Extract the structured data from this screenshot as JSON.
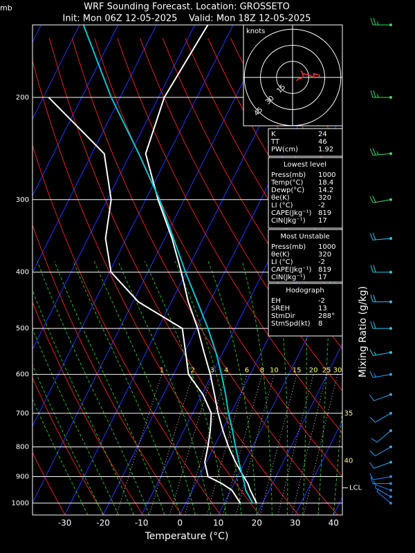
{
  "chart_data": {
    "type": "skewt",
    "title": "WRF Sounding Forecast. Location: GROSSETO",
    "subtitle": "Init: Mon 06Z 12-05-2025    Valid: Mon 18Z 12-05-2025",
    "y_unit": "mb",
    "xlabel": "Temperature (°C)",
    "xlim": [
      -38.4,
      42.3
    ],
    "xticks": [
      -30,
      -20,
      -10,
      0,
      10,
      20,
      30,
      40
    ],
    "ylim": [
      1048,
      150
    ],
    "yticks": [
      1000,
      900,
      800,
      700,
      600,
      500,
      400,
      300,
      200
    ],
    "log_y": true,
    "pressures": [
      1000,
      950,
      925,
      900,
      850,
      800,
      750,
      700,
      650,
      600,
      550,
      500,
      450,
      400,
      350,
      300,
      250,
      200,
      150
    ],
    "series": [
      {
        "color": "#ffffff",
        "values": [
          18.4,
          15.1,
          13.6,
          11.6,
          7.6,
          3.8,
          0.2,
          -3.3,
          -6.7,
          -10.4,
          -14.9,
          -19.7,
          -25.6,
          -31.3,
          -38.1,
          -46.8,
          -56.0,
          -58.5,
          -56.6
        ]
      },
      {
        "color": "#ffffff",
        "values": [
          14.2,
          10.3,
          6.8,
          2.3,
          -0.4,
          -1.6,
          -3.1,
          -5.1,
          -9.7,
          -16.1,
          -19.7,
          -23.7,
          -38.6,
          -49.6,
          -55.4,
          -59.0,
          -66.8,
          -88.6,
          null
        ]
      },
      {
        "color": "#00c8d0",
        "values": [
          17.4,
          13.9,
          12.7,
          11.3,
          8.5,
          5.6,
          2.7,
          -0.6,
          -3.8,
          -7.5,
          -11.8,
          -17.0,
          -23.2,
          -30.2,
          -37.7,
          -46.4,
          -57.8,
          -72.3,
          -89.0
        ]
      }
    ],
    "mixing_ratio": {
      "label": "Mixing Ratio (g/kg)",
      "top_pressure": 600,
      "values": [
        1,
        2,
        3,
        4,
        6,
        8,
        10,
        15,
        20,
        25,
        30
      ]
    },
    "moist_labels": [
      {
        "label": 35,
        "pressure": 700
      },
      {
        "label": 40,
        "pressure": 845
      }
    ],
    "lcl": {
      "label": "LCL",
      "pressure": 941
    },
    "winds": {
      "pressures": [
        150,
        200,
        250,
        300,
        350,
        400,
        450,
        500,
        550,
        600,
        650,
        700,
        750,
        800,
        850,
        900,
        925,
        950,
        975,
        1000
      ],
      "direction": [
        270,
        270,
        265,
        260,
        265,
        270,
        270,
        270,
        260,
        260,
        250,
        240,
        230,
        240,
        250,
        260,
        270,
        290,
        300,
        310
      ],
      "speed": [
        25,
        25,
        25,
        20,
        20,
        20,
        20,
        20,
        15,
        15,
        10,
        10,
        10,
        10,
        10,
        10,
        10,
        5,
        5,
        5
      ],
      "colors": [
        "#33dd66",
        "#33dd66",
        "#33dd66",
        "#33dd66",
        "#22ccee",
        "#22ccee",
        "#22ccee",
        "#22ccee",
        "#22ccee",
        "#22aaff",
        "#22aaff",
        "#22aaff",
        "#22aaff",
        "#22aaff",
        "#22aaff",
        "#2288ff",
        "#2288ff",
        "#2288ff",
        "#2288ff",
        "#2288ff"
      ]
    },
    "hodograph": {
      "unit": "knots",
      "rings": [
        15,
        30,
        45
      ]
    }
  },
  "indices": {
    "rows": [
      [
        "K",
        24
      ],
      [
        "TT",
        46
      ],
      [
        "PW(cm)",
        1.92
      ]
    ]
  },
  "lowest_level": {
    "title": "Lowest level",
    "rows": [
      [
        "Press(mb)",
        1000
      ],
      [
        "Temp(°C)",
        18.4
      ],
      [
        "Dewp(°C)",
        14.2
      ],
      [
        "θe(K)",
        320
      ],
      [
        "LI (°C)",
        -2
      ],
      [
        "CAPE(Jkg⁻¹)",
        819
      ],
      [
        "CIN(Jkg⁻¹)",
        17
      ]
    ]
  },
  "most_unstable": {
    "title": "Most Unstable",
    "rows": [
      [
        "Press(mb)",
        1000
      ],
      [
        "θe(K)",
        320
      ],
      [
        "LI (°C)",
        -2
      ],
      [
        "CAPE(Jkg⁻¹)",
        819
      ],
      [
        "CIN(Jkg⁻¹)",
        17
      ]
    ]
  },
  "hodograph_box": {
    "title": "Hodograph",
    "rows": [
      [
        "EH",
        -2
      ],
      [
        "SREH",
        13
      ],
      [
        "StmDir",
        "288°"
      ],
      [
        "StmSpd(kt)",
        8
      ]
    ]
  }
}
